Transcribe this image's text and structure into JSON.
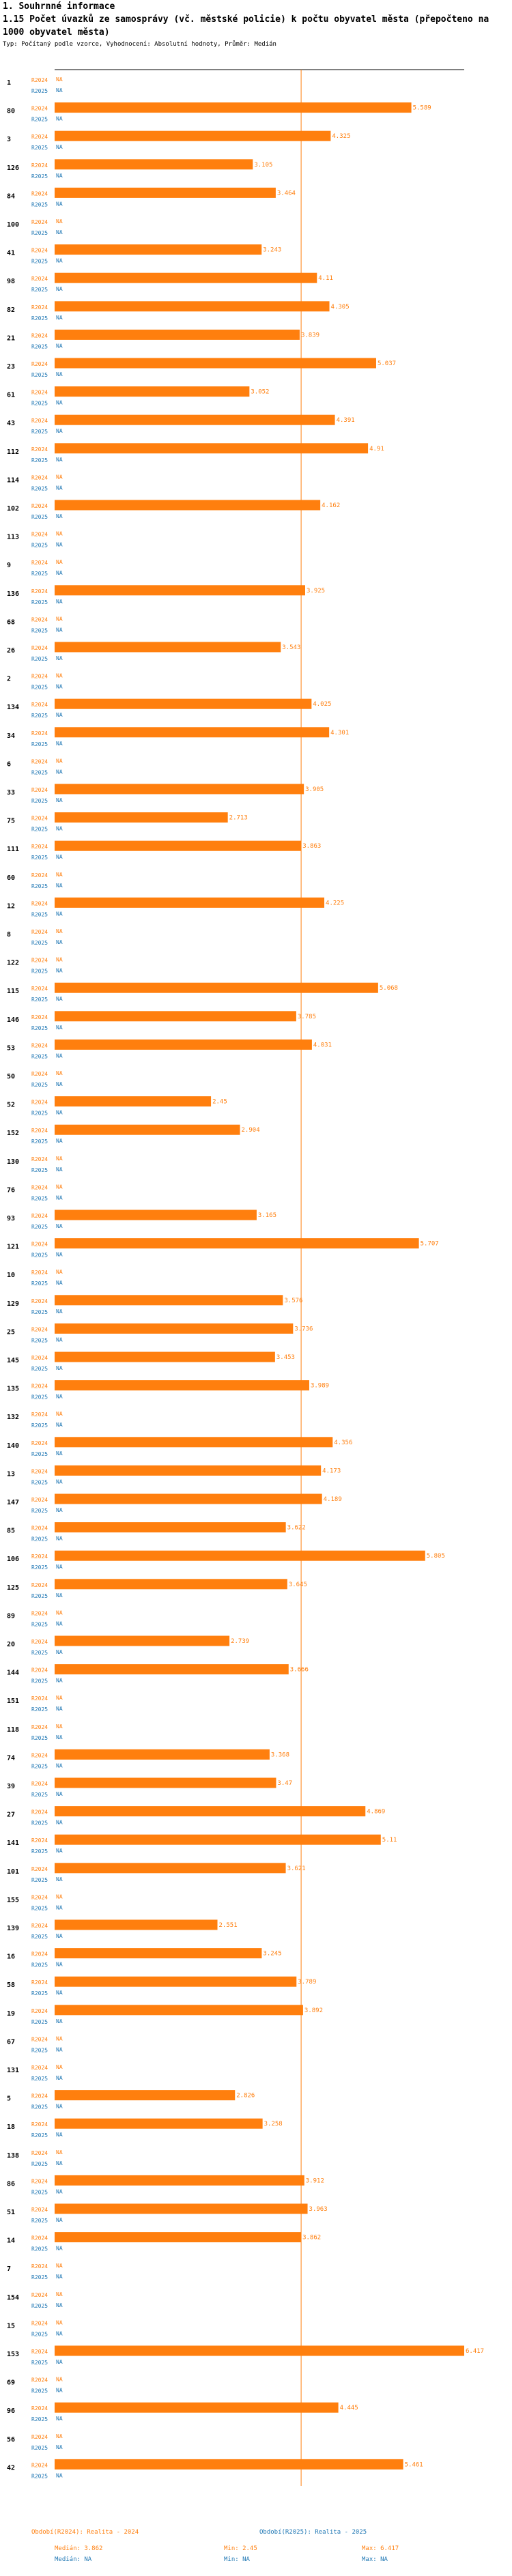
{
  "header": {
    "section": "1. Souhrnné informace",
    "title": "1.15 Počet úvazků ze samosprávy (vč. městské policie) k počtu obyvatel města (přepočteno na 1000 obyvatel města)",
    "subtitle": "Typ: Počítaný podle vzorce, Vyhodnocení: Absolutní hodnoty, Průměr: Medián"
  },
  "colors": {
    "r2024": "#ff7f0e",
    "r2025": "#1f77b4",
    "median": "#ff7f0e"
  },
  "chart_data": {
    "type": "bar",
    "orientation": "horizontal",
    "title": "1.15 Počet úvazků ze samosprávy (vč. městské policie) k počtu obyvatel města (přepočteno na 1000 obyvatel města)",
    "series_labels": [
      "R2024",
      "R2025"
    ],
    "missing_label": "NA",
    "xlim": [
      0,
      6.417
    ],
    "median_2024": 3.862,
    "rows": [
      {
        "id": "1",
        "v2024": null,
        "v2025": null
      },
      {
        "id": "80",
        "v2024": 5.589,
        "v2025": null
      },
      {
        "id": "3",
        "v2024": 4.325,
        "v2025": null
      },
      {
        "id": "126",
        "v2024": 3.105,
        "v2025": null
      },
      {
        "id": "84",
        "v2024": 3.464,
        "v2025": null
      },
      {
        "id": "100",
        "v2024": null,
        "v2025": null
      },
      {
        "id": "41",
        "v2024": 3.243,
        "v2025": null
      },
      {
        "id": "98",
        "v2024": 4.11,
        "v2025": null
      },
      {
        "id": "82",
        "v2024": 4.305,
        "v2025": null
      },
      {
        "id": "21",
        "v2024": 3.839,
        "v2025": null
      },
      {
        "id": "23",
        "v2024": 5.037,
        "v2025": null
      },
      {
        "id": "61",
        "v2024": 3.052,
        "v2025": null
      },
      {
        "id": "43",
        "v2024": 4.391,
        "v2025": null
      },
      {
        "id": "112",
        "v2024": 4.91,
        "v2025": null
      },
      {
        "id": "114",
        "v2024": null,
        "v2025": null
      },
      {
        "id": "102",
        "v2024": 4.162,
        "v2025": null
      },
      {
        "id": "113",
        "v2024": null,
        "v2025": null
      },
      {
        "id": "9",
        "v2024": null,
        "v2025": null
      },
      {
        "id": "136",
        "v2024": 3.925,
        "v2025": null
      },
      {
        "id": "68",
        "v2024": null,
        "v2025": null
      },
      {
        "id": "26",
        "v2024": 3.543,
        "v2025": null
      },
      {
        "id": "2",
        "v2024": null,
        "v2025": null
      },
      {
        "id": "134",
        "v2024": 4.025,
        "v2025": null
      },
      {
        "id": "34",
        "v2024": 4.301,
        "v2025": null
      },
      {
        "id": "6",
        "v2024": null,
        "v2025": null
      },
      {
        "id": "33",
        "v2024": 3.905,
        "v2025": null
      },
      {
        "id": "75",
        "v2024": 2.713,
        "v2025": null
      },
      {
        "id": "111",
        "v2024": 3.863,
        "v2025": null
      },
      {
        "id": "60",
        "v2024": null,
        "v2025": null
      },
      {
        "id": "12",
        "v2024": 4.225,
        "v2025": null
      },
      {
        "id": "8",
        "v2024": null,
        "v2025": null
      },
      {
        "id": "122",
        "v2024": null,
        "v2025": null
      },
      {
        "id": "115",
        "v2024": 5.068,
        "v2025": null
      },
      {
        "id": "146",
        "v2024": 3.785,
        "v2025": null
      },
      {
        "id": "53",
        "v2024": 4.031,
        "v2025": null
      },
      {
        "id": "50",
        "v2024": null,
        "v2025": null
      },
      {
        "id": "52",
        "v2024": 2.45,
        "v2025": null
      },
      {
        "id": "152",
        "v2024": 2.904,
        "v2025": null
      },
      {
        "id": "130",
        "v2024": null,
        "v2025": null
      },
      {
        "id": "76",
        "v2024": null,
        "v2025": null
      },
      {
        "id": "93",
        "v2024": 3.165,
        "v2025": null
      },
      {
        "id": "121",
        "v2024": 5.707,
        "v2025": null
      },
      {
        "id": "10",
        "v2024": null,
        "v2025": null
      },
      {
        "id": "129",
        "v2024": 3.576,
        "v2025": null
      },
      {
        "id": "25",
        "v2024": 3.736,
        "v2025": null
      },
      {
        "id": "145",
        "v2024": 3.453,
        "v2025": null
      },
      {
        "id": "135",
        "v2024": 3.989,
        "v2025": null
      },
      {
        "id": "132",
        "v2024": null,
        "v2025": null
      },
      {
        "id": "140",
        "v2024": 4.356,
        "v2025": null
      },
      {
        "id": "13",
        "v2024": 4.173,
        "v2025": null
      },
      {
        "id": "147",
        "v2024": 4.189,
        "v2025": null
      },
      {
        "id": "85",
        "v2024": 3.622,
        "v2025": null
      },
      {
        "id": "106",
        "v2024": 5.805,
        "v2025": null
      },
      {
        "id": "125",
        "v2024": 3.645,
        "v2025": null
      },
      {
        "id": "89",
        "v2024": null,
        "v2025": null
      },
      {
        "id": "20",
        "v2024": 2.739,
        "v2025": null
      },
      {
        "id": "144",
        "v2024": 3.666,
        "v2025": null
      },
      {
        "id": "151",
        "v2024": null,
        "v2025": null
      },
      {
        "id": "118",
        "v2024": null,
        "v2025": null
      },
      {
        "id": "74",
        "v2024": 3.368,
        "v2025": null
      },
      {
        "id": "39",
        "v2024": 3.47,
        "v2025": null
      },
      {
        "id": "27",
        "v2024": 4.869,
        "v2025": null
      },
      {
        "id": "141",
        "v2024": 5.11,
        "v2025": null
      },
      {
        "id": "101",
        "v2024": 3.621,
        "v2025": null
      },
      {
        "id": "155",
        "v2024": null,
        "v2025": null
      },
      {
        "id": "139",
        "v2024": 2.551,
        "v2025": null
      },
      {
        "id": "16",
        "v2024": 3.245,
        "v2025": null
      },
      {
        "id": "58",
        "v2024": 3.789,
        "v2025": null
      },
      {
        "id": "19",
        "v2024": 3.892,
        "v2025": null
      },
      {
        "id": "67",
        "v2024": null,
        "v2025": null
      },
      {
        "id": "131",
        "v2024": null,
        "v2025": null
      },
      {
        "id": "5",
        "v2024": 2.826,
        "v2025": null
      },
      {
        "id": "18",
        "v2024": 3.258,
        "v2025": null
      },
      {
        "id": "138",
        "v2024": null,
        "v2025": null
      },
      {
        "id": "86",
        "v2024": 3.912,
        "v2025": null
      },
      {
        "id": "51",
        "v2024": 3.963,
        "v2025": null
      },
      {
        "id": "14",
        "v2024": 3.862,
        "v2025": null
      },
      {
        "id": "7",
        "v2024": null,
        "v2025": null
      },
      {
        "id": "154",
        "v2024": null,
        "v2025": null
      },
      {
        "id": "15",
        "v2024": null,
        "v2025": null
      },
      {
        "id": "153",
        "v2024": 6.417,
        "v2025": null
      },
      {
        "id": "69",
        "v2024": null,
        "v2025": null
      },
      {
        "id": "96",
        "v2024": 4.445,
        "v2025": null
      },
      {
        "id": "56",
        "v2024": null,
        "v2025": null
      },
      {
        "id": "42",
        "v2024": 5.461,
        "v2025": null
      }
    ]
  },
  "legend": {
    "r2024_title": "Období(R2024): Realita - 2024",
    "r2025_title": "Období(R2025): Realita - 2025",
    "r2024_median": "Medián: 3.862",
    "r2024_min": "Min: 2.45",
    "r2024_max": "Max: 6.417",
    "r2025_median": "Medián: NA",
    "r2025_min": "Min: NA",
    "r2025_max": "Max: NA"
  }
}
